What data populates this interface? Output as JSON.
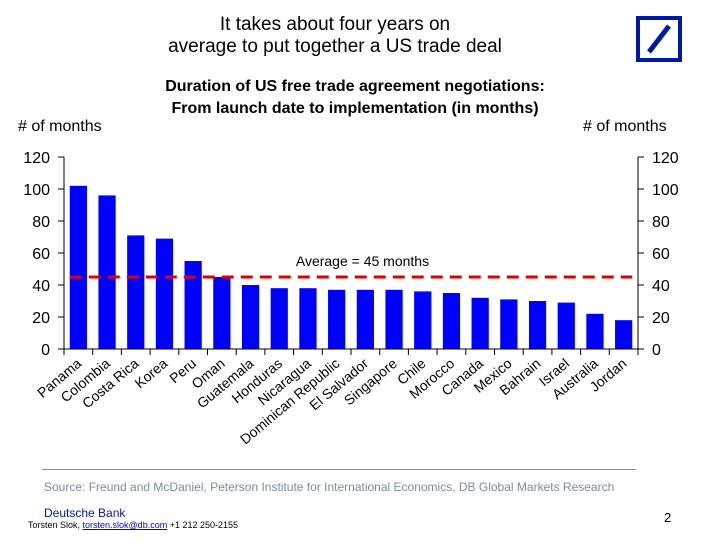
{
  "slide": {
    "headline_line1": "It takes about four years on",
    "headline_line2": "average to put together a US trade deal",
    "source": "Source: Freund and McDaniel, Peterson Institute for International Economics,  DB Global Markets Research",
    "bank_name": "Deutsche Bank",
    "author": "Torsten Slok, ",
    "email": "torsten.slok@db.com",
    "phone": "  +1 212 250-2155",
    "page_number": "2"
  },
  "colors": {
    "bar": "#0000FF",
    "average_line": "#E00000",
    "brand": "#0018A8"
  },
  "chart_data": {
    "type": "bar",
    "title_line1": "Duration of US free trade agreement negotiations:",
    "title_line2": "From launch date to implementation (in months)",
    "ylabel_left": "# of months",
    "ylabel_right": "# of months",
    "ylim": [
      0,
      120
    ],
    "yticks": [
      0,
      20,
      40,
      60,
      80,
      100,
      120
    ],
    "grid": false,
    "categories": [
      "Panama",
      "Colombia",
      "Costa Rica",
      "Korea",
      "Peru",
      "Oman",
      "Guatemala",
      "Honduras",
      "Nicaragua",
      "Dominican Republic",
      "El Salvador",
      "Singapore",
      "Chile",
      "Morocco",
      "Canada",
      "Mexico",
      "Bahrain",
      "Israel",
      "Australia",
      "Jordan"
    ],
    "values": [
      102,
      96,
      71,
      69,
      55,
      45,
      40,
      38,
      38,
      37,
      37,
      37,
      36,
      35,
      32,
      31,
      30,
      29,
      22,
      18
    ],
    "average": {
      "value": 45,
      "label": "Average = 45 months"
    }
  }
}
